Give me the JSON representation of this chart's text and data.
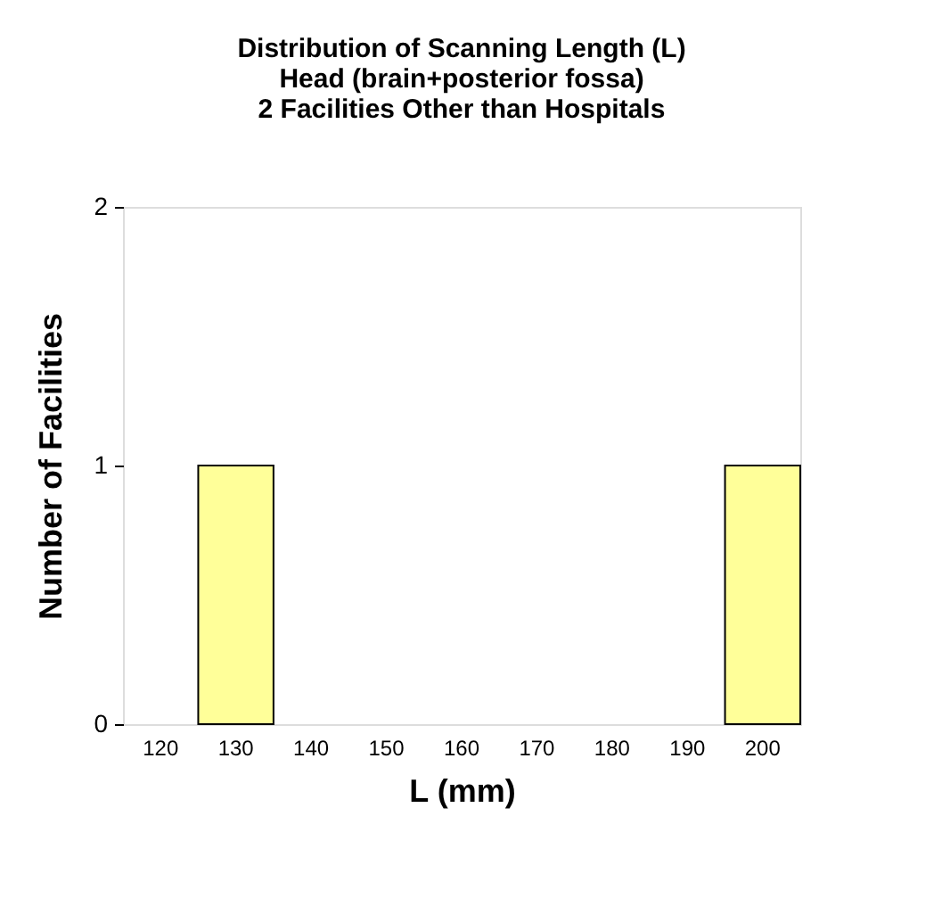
{
  "chart_data": {
    "type": "bar",
    "title": [
      "Distribution of Scanning Length (L)",
      "Head (brain+posterior fossa)",
      "2 Facilities Other than Hospitals"
    ],
    "xlabel": "L (mm)",
    "ylabel": "Number of Facilities",
    "categories": [
      "120",
      "130",
      "140",
      "150",
      "160",
      "170",
      "180",
      "190",
      "200"
    ],
    "values": [
      0,
      1,
      0,
      0,
      0,
      0,
      0,
      0,
      1
    ],
    "color": "#ffff99",
    "ylim": [
      0,
      2
    ],
    "yticks": [
      0,
      1,
      2
    ],
    "grid": false
  }
}
